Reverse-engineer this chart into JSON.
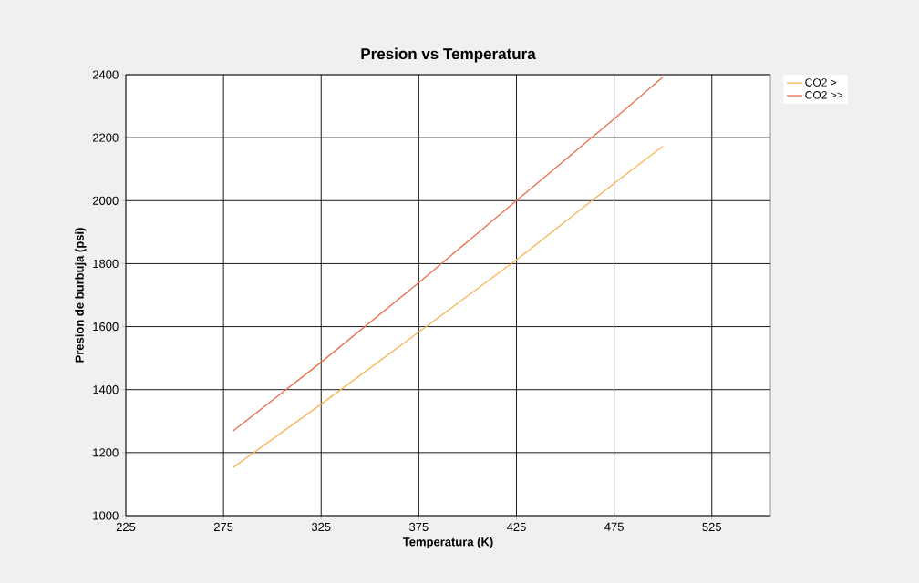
{
  "chart_data": {
    "type": "line",
    "title": "Presion vs Temperatura",
    "xlabel": "Temperatura (K)",
    "ylabel": "Presion de burbuja (psi)",
    "x": [
      280,
      325,
      375,
      425,
      475,
      500
    ],
    "series": [
      {
        "name": "CO2 >",
        "color": "#f8b454",
        "values": [
          1153,
          1354,
          1583,
          1812,
          2055,
          2173
        ]
      },
      {
        "name": "CO2 >>",
        "color": "#e8704c",
        "values": [
          1269,
          1487,
          1740,
          2000,
          2260,
          2393
        ]
      }
    ],
    "xlim": [
      225,
      555
    ],
    "xticks": [
      225,
      275,
      325,
      375,
      425,
      475,
      525
    ],
    "ylim": [
      1000,
      2400
    ],
    "yticks": [
      1000,
      1200,
      1400,
      1600,
      1800,
      2000,
      2200,
      2400
    ],
    "grid": true,
    "legend": "top right",
    "marker": "none",
    "line_style": "solid"
  }
}
